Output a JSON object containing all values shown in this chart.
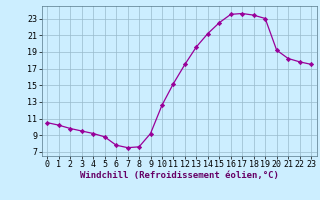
{
  "hours": [
    0,
    1,
    2,
    3,
    4,
    5,
    6,
    7,
    8,
    9,
    10,
    11,
    12,
    13,
    14,
    15,
    16,
    17,
    18,
    19,
    20,
    21,
    22,
    23
  ],
  "values": [
    10.5,
    10.2,
    9.8,
    9.5,
    9.2,
    8.8,
    7.8,
    7.5,
    7.6,
    9.2,
    12.6,
    15.2,
    17.5,
    19.6,
    21.2,
    22.5,
    23.5,
    23.6,
    23.4,
    23.0,
    19.2,
    18.2,
    17.8,
    17.5
  ],
  "line_color": "#990099",
  "marker": "D",
  "marker_size": 2.2,
  "bg_color": "#cceeff",
  "grid_color": "#99bbcc",
  "xlabel": "Windchill (Refroidissement éolien,°C)",
  "xlim": [
    -0.5,
    23.5
  ],
  "ylim": [
    6.5,
    24.5
  ],
  "yticks": [
    7,
    9,
    11,
    13,
    15,
    17,
    19,
    21,
    23
  ],
  "xticks": [
    0,
    1,
    2,
    3,
    4,
    5,
    6,
    7,
    8,
    9,
    10,
    11,
    12,
    13,
    14,
    15,
    16,
    17,
    18,
    19,
    20,
    21,
    22,
    23
  ],
  "label_fontsize": 6.5,
  "tick_fontsize": 6.0
}
